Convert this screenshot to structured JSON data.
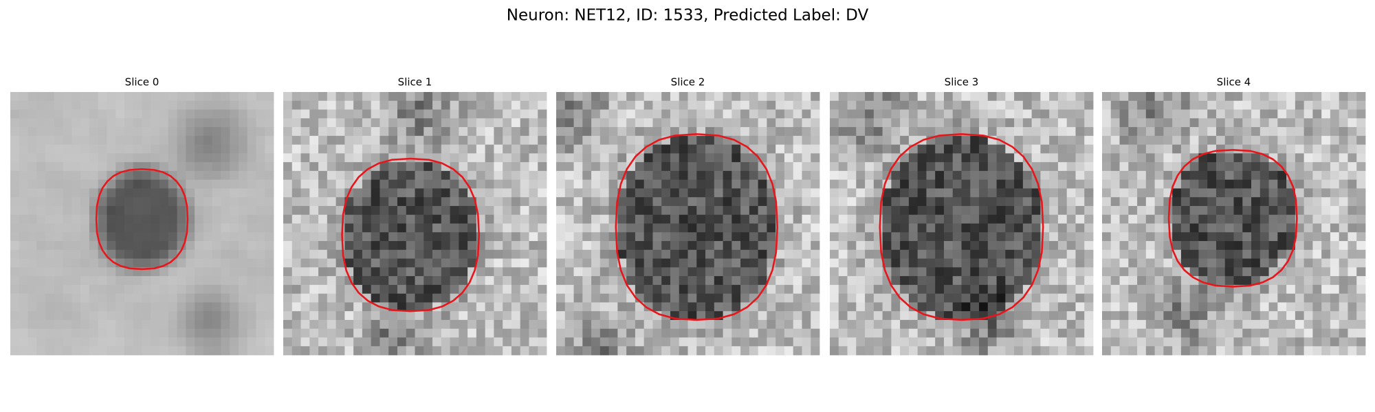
{
  "title": "Neuron: NET12, ID: 1533, Predicted Label: DV",
  "panels": [
    {
      "title": "Slice 0"
    },
    {
      "title": "Slice 1"
    },
    {
      "title": "Slice 2"
    },
    {
      "title": "Slice 3"
    },
    {
      "title": "Slice 4"
    }
  ]
}
